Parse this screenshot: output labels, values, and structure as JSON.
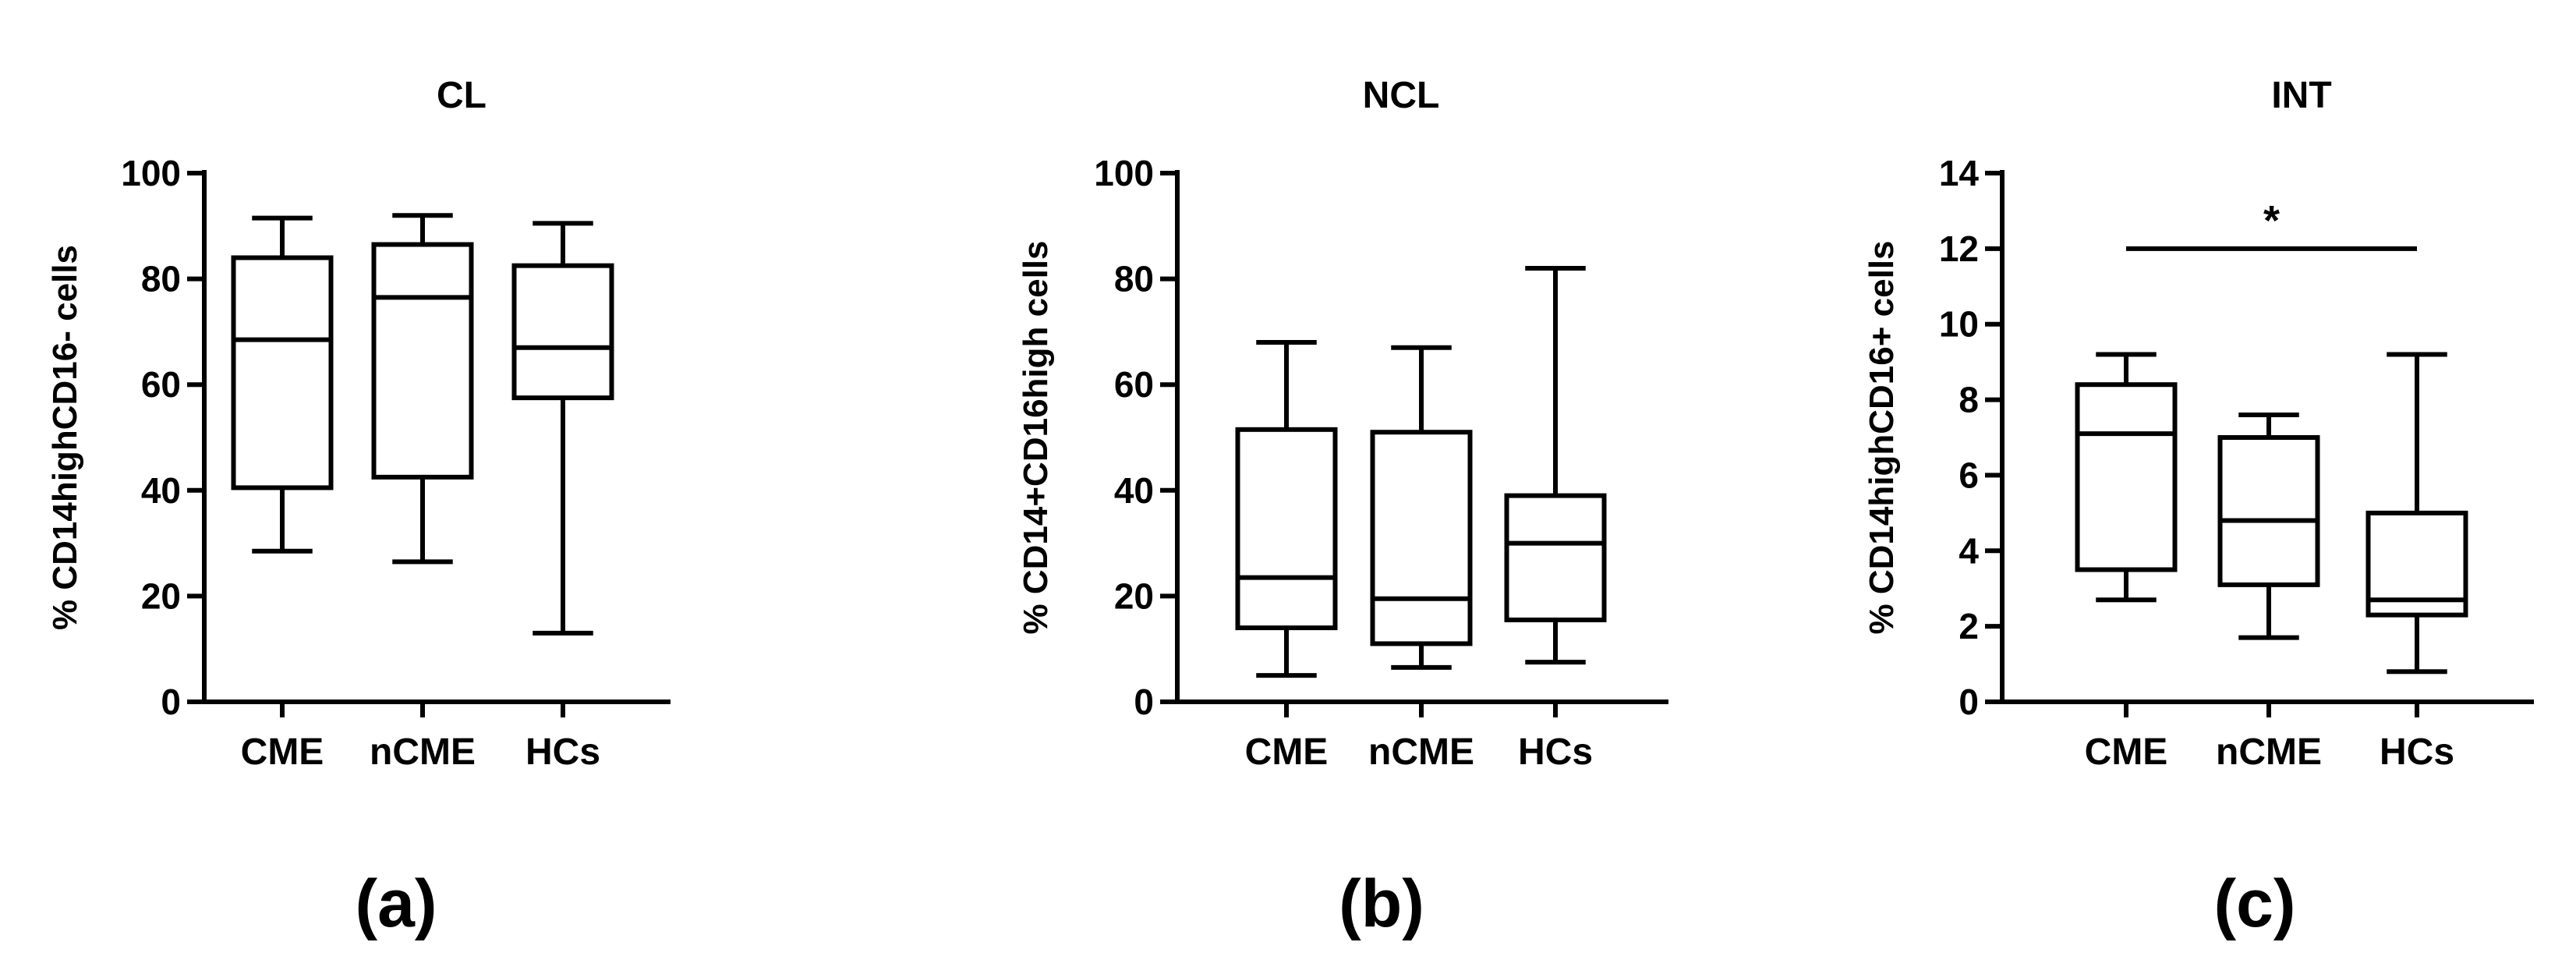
{
  "chart_data": [
    {
      "type": "box",
      "panel_label": "(a)",
      "title": "CL",
      "ylabel": "% CD14highCD16- cells",
      "ylim": [
        0,
        100
      ],
      "yticks": [
        0,
        20,
        40,
        60,
        80,
        100
      ],
      "categories": [
        "CME",
        "nCME",
        "HCs"
      ],
      "boxes": [
        {
          "min": 28.5,
          "q1": 40.5,
          "median": 68.5,
          "q3": 84,
          "max": 91.5
        },
        {
          "min": 26.5,
          "q1": 42.5,
          "median": 76.5,
          "q3": 86.5,
          "max": 92
        },
        {
          "min": 13,
          "q1": 57.5,
          "median": 67,
          "q3": 82.5,
          "max": 90.5
        }
      ]
    },
    {
      "type": "box",
      "panel_label": "(b)",
      "title": "NCL",
      "ylabel": "% CD14+CD16high cells",
      "ylim": [
        0,
        100
      ],
      "yticks": [
        0,
        20,
        40,
        60,
        80,
        100
      ],
      "categories": [
        "CME",
        "nCME",
        "HCs"
      ],
      "boxes": [
        {
          "min": 5,
          "q1": 14,
          "median": 23.5,
          "q3": 51.5,
          "max": 68
        },
        {
          "min": 6.5,
          "q1": 11,
          "median": 19.5,
          "q3": 51,
          "max": 67
        },
        {
          "min": 7.5,
          "q1": 15.5,
          "median": 30,
          "q3": 39,
          "max": 82
        }
      ]
    },
    {
      "type": "box",
      "panel_label": "(c)",
      "title": "INT",
      "ylabel": "% CD14highCD16+ cells",
      "ylim": [
        0,
        14
      ],
      "yticks": [
        0,
        2,
        4,
        6,
        8,
        10,
        12,
        14
      ],
      "categories": [
        "CME",
        "nCME",
        "HCs"
      ],
      "boxes": [
        {
          "min": 2.7,
          "q1": 3.5,
          "median": 7.1,
          "q3": 8.4,
          "max": 9.2
        },
        {
          "min": 1.7,
          "q1": 3.1,
          "median": 4.8,
          "q3": 7.0,
          "max": 7.6
        },
        {
          "min": 0.8,
          "q1": 2.3,
          "median": 2.7,
          "q3": 5.0,
          "max": 9.2
        }
      ],
      "annotation": {
        "text": "*",
        "from": "CME",
        "to": "HCs",
        "y": 12
      }
    }
  ]
}
